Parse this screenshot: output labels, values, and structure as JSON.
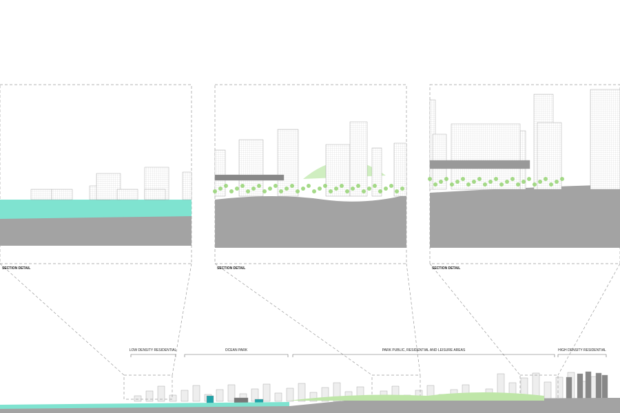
{
  "panels": [
    {
      "label": "SECTION DETAIL"
    },
    {
      "label": "SECTION DETAIL"
    },
    {
      "label": "SECTION DETAIL"
    }
  ],
  "zones": [
    {
      "label": "LOW DENSITY RESIDENTIAL"
    },
    {
      "label": "OCEAN PARK"
    },
    {
      "label": "PARK PUBLIC, RESIDENTIAL AND LEISURE AREAS"
    },
    {
      "label": "HIGH DENSITY RESIDENTIAL"
    }
  ]
}
